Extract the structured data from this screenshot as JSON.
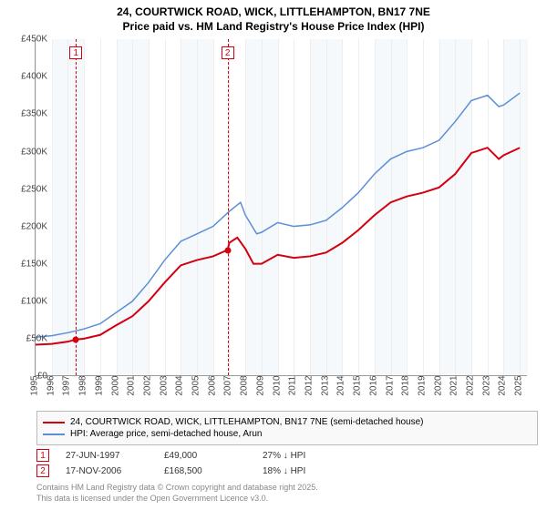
{
  "title_line1": "24, COURTWICK ROAD, WICK, LITTLEHAMPTON, BN17 7NE",
  "title_line2": "Price paid vs. HM Land Registry's House Price Index (HPI)",
  "chart": {
    "type": "line",
    "xlim": [
      1995,
      2025.5
    ],
    "ylim": [
      0,
      450000
    ],
    "ytick_step": 50000,
    "yticks": [
      "£0",
      "£50K",
      "£100K",
      "£150K",
      "£200K",
      "£250K",
      "£300K",
      "£350K",
      "£400K",
      "£450K"
    ],
    "xticks": [
      1995,
      1996,
      1997,
      1998,
      1999,
      2000,
      2001,
      2002,
      2003,
      2004,
      2005,
      2006,
      2007,
      2008,
      2009,
      2010,
      2011,
      2012,
      2013,
      2014,
      2015,
      2016,
      2017,
      2018,
      2019,
      2020,
      2021,
      2022,
      2023,
      2024,
      2025
    ],
    "band_years": [
      [
        1996,
        1998
      ],
      [
        2000,
        2002
      ],
      [
        2004,
        2006
      ],
      [
        2008,
        2010
      ],
      [
        2012,
        2014
      ],
      [
        2016,
        2018
      ],
      [
        2020,
        2022
      ],
      [
        2024,
        2025.5
      ]
    ],
    "grid_color": "#eeeeee",
    "band_color": "#f5f9fc",
    "background_color": "#ffffff",
    "series": [
      {
        "name": "property",
        "label": "24, COURTWICK ROAD, WICK, LITTLEHAMPTON, BN17 7NE (semi-detached house)",
        "color": "#d3000f",
        "width": 2,
        "points": [
          [
            1995,
            42000
          ],
          [
            1996,
            43000
          ],
          [
            1997,
            46000
          ],
          [
            1997.5,
            49000
          ],
          [
            1998,
            50000
          ],
          [
            1999,
            55000
          ],
          [
            2000,
            68000
          ],
          [
            2001,
            80000
          ],
          [
            2002,
            100000
          ],
          [
            2003,
            125000
          ],
          [
            2004,
            148000
          ],
          [
            2005,
            155000
          ],
          [
            2006,
            160000
          ],
          [
            2006.9,
            168500
          ],
          [
            2007,
            178000
          ],
          [
            2007.5,
            185000
          ],
          [
            2008,
            170000
          ],
          [
            2008.5,
            150000
          ],
          [
            2009,
            150000
          ],
          [
            2010,
            162000
          ],
          [
            2011,
            158000
          ],
          [
            2012,
            160000
          ],
          [
            2013,
            165000
          ],
          [
            2014,
            178000
          ],
          [
            2015,
            195000
          ],
          [
            2016,
            215000
          ],
          [
            2017,
            232000
          ],
          [
            2018,
            240000
          ],
          [
            2019,
            245000
          ],
          [
            2020,
            252000
          ],
          [
            2021,
            270000
          ],
          [
            2022,
            298000
          ],
          [
            2023,
            305000
          ],
          [
            2023.7,
            290000
          ],
          [
            2024,
            295000
          ],
          [
            2025,
            305000
          ]
        ]
      },
      {
        "name": "hpi",
        "label": "HPI: Average price, semi-detached house, Arun",
        "color": "#5b8fd6",
        "width": 1.5,
        "points": [
          [
            1995,
            52000
          ],
          [
            1996,
            54000
          ],
          [
            1997,
            58000
          ],
          [
            1998,
            63000
          ],
          [
            1999,
            70000
          ],
          [
            2000,
            85000
          ],
          [
            2001,
            100000
          ],
          [
            2002,
            125000
          ],
          [
            2003,
            155000
          ],
          [
            2004,
            180000
          ],
          [
            2005,
            190000
          ],
          [
            2006,
            200000
          ],
          [
            2007,
            220000
          ],
          [
            2007.7,
            232000
          ],
          [
            2008,
            215000
          ],
          [
            2008.7,
            190000
          ],
          [
            2009,
            192000
          ],
          [
            2010,
            205000
          ],
          [
            2011,
            200000
          ],
          [
            2012,
            202000
          ],
          [
            2013,
            208000
          ],
          [
            2014,
            225000
          ],
          [
            2015,
            245000
          ],
          [
            2016,
            270000
          ],
          [
            2017,
            290000
          ],
          [
            2018,
            300000
          ],
          [
            2019,
            305000
          ],
          [
            2020,
            315000
          ],
          [
            2021,
            340000
          ],
          [
            2022,
            368000
          ],
          [
            2023,
            375000
          ],
          [
            2023.7,
            360000
          ],
          [
            2024,
            362000
          ],
          [
            2025,
            378000
          ]
        ]
      }
    ],
    "sale_dots": [
      {
        "year": 1997.5,
        "value": 49000,
        "color": "#d3000f"
      },
      {
        "year": 2006.9,
        "value": 168500,
        "color": "#d3000f"
      }
    ],
    "markers": [
      {
        "idx": "1",
        "year": 1997.5,
        "color": "#d3000f",
        "date": "27-JUN-1997",
        "price": "£49,000",
        "diff": "27% ↓ HPI"
      },
      {
        "idx": "2",
        "year": 2006.9,
        "color": "#d3000f",
        "date": "17-NOV-2006",
        "price": "£168,500",
        "diff": "18% ↓ HPI"
      }
    ]
  },
  "legend": {
    "row1": "24, COURTWICK ROAD, WICK, LITTLEHAMPTON, BN17 7NE (semi-detached house)",
    "row2": "HPI: Average price, semi-detached house, Arun"
  },
  "footer_line1": "Contains HM Land Registry data © Crown copyright and database right 2025.",
  "footer_line2": "This data is licensed under the Open Government Licence v3.0."
}
